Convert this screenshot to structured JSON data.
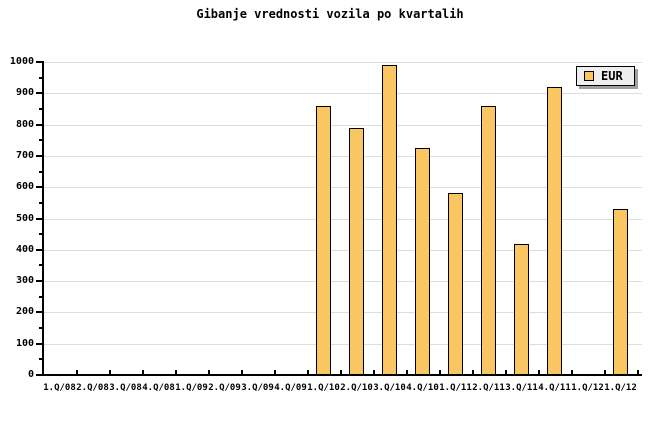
{
  "chart": {
    "title": "Gibanje vrednosti vozila po kvartalih",
    "legend": {
      "label": "EUR"
    }
  },
  "colors": {
    "background": "#FFFFFF",
    "bar_fill": "#FAC661",
    "bar_border": "#000000",
    "gridline": "#DDDDDD",
    "axis": "#000000",
    "text": "#000000",
    "legend_background": "#EEEEEE",
    "legend_shadow": "#A0A0A0"
  },
  "chart_data": {
    "type": "bar",
    "title": "Gibanje vrednosti vozila po kvartalih",
    "categories": [
      "1.Q/08",
      "2.Q/08",
      "3.Q/08",
      "4.Q/08",
      "1.Q/09",
      "2.Q/09",
      "3.Q/09",
      "4.Q/09",
      "1.Q/10",
      "2.Q/10",
      "3.Q/10",
      "4.Q/10",
      "1.Q/11",
      "2.Q/11",
      "3.Q/11",
      "4.Q/11",
      "1.Q/12",
      "1.Q/12"
    ],
    "series": [
      {
        "name": "EUR",
        "values": [
          null,
          null,
          null,
          null,
          null,
          null,
          null,
          null,
          860,
          790,
          990,
          725,
          580,
          860,
          420,
          920,
          null,
          530
        ]
      }
    ],
    "xlabel": "",
    "ylabel": "",
    "ylim": [
      0,
      1000
    ],
    "yticks": [
      0,
      100,
      200,
      300,
      400,
      500,
      600,
      700,
      800,
      900,
      1000
    ],
    "yminor_step": 50,
    "grid": true,
    "legend_position": "top-right"
  }
}
